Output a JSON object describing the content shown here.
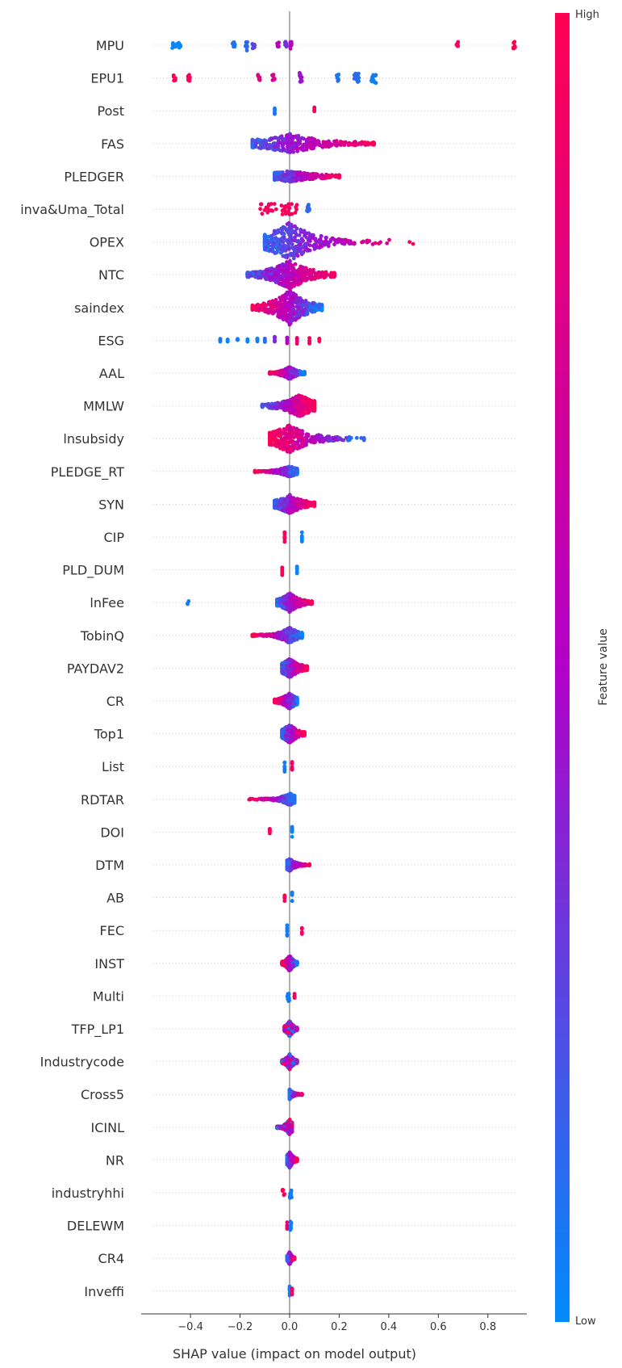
{
  "chart_data": {
    "type": "scatter",
    "subtype": "shap-beeswarm",
    "xlabel": "SHAP value (impact on model output)",
    "xlim": [
      -0.55,
      0.97
    ],
    "xticks": [
      -0.4,
      -0.2,
      0.0,
      0.2,
      0.4,
      0.6,
      0.8
    ],
    "xtick_labels": [
      "−0.4",
      "−0.2",
      "0.0",
      "0.2",
      "0.4",
      "0.6",
      "0.8"
    ],
    "colorbar": {
      "label": "Feature value",
      "high_label": "High",
      "low_label": "Low",
      "high_color": "#ff0052",
      "mid_color": "#b300c8",
      "low_color": "#008bfb"
    },
    "grid": "dotted horizontal per feature",
    "features": [
      {
        "name": "MPU",
        "clusters": [
          [
            -0.48,
            -0.44,
            0.0,
            2
          ],
          [
            -0.23,
            -0.22,
            0.1,
            2
          ],
          [
            -0.18,
            -0.17,
            0.12,
            3
          ],
          [
            -0.15,
            -0.14,
            0.25,
            2
          ],
          [
            -0.05,
            -0.04,
            0.55,
            2
          ],
          [
            -0.02,
            -0.01,
            0.3,
            2
          ],
          [
            0.0,
            0.01,
            0.55,
            2
          ],
          [
            0.67,
            0.68,
            0.95,
            2
          ],
          [
            0.9,
            0.91,
            1.0,
            2
          ]
        ]
      },
      {
        "name": "EPU1",
        "clusters": [
          [
            -0.47,
            -0.46,
            1.0,
            2
          ],
          [
            -0.41,
            -0.4,
            0.95,
            2
          ],
          [
            -0.13,
            -0.12,
            0.8,
            2
          ],
          [
            -0.07,
            -0.06,
            0.7,
            2
          ],
          [
            0.04,
            0.05,
            0.45,
            3
          ],
          [
            0.19,
            0.2,
            0.1,
            2
          ],
          [
            0.26,
            0.28,
            0.1,
            3
          ],
          [
            0.33,
            0.35,
            0.05,
            3
          ]
        ]
      },
      {
        "name": "Post",
        "clusters": [
          [
            -0.06,
            -0.06,
            0.1,
            2
          ],
          [
            0.1,
            0.1,
            0.95,
            2
          ]
        ]
      },
      {
        "name": "FAS",
        "mode": "spread",
        "min": -0.15,
        "max": 0.34,
        "peak": 0.0,
        "tail_decay": 0.18,
        "height": 12,
        "color_fn": "right_high"
      },
      {
        "name": "PLEDGER",
        "mode": "spread",
        "min": -0.06,
        "max": 0.2,
        "peak": 0.0,
        "tail_decay": 0.15,
        "height": 7,
        "color_fn": "right_high"
      },
      {
        "name": "inva&Uma_Total",
        "clusters": [
          [
            -0.12,
            0.03,
            0.95,
            3
          ],
          [
            0.07,
            0.08,
            0.1,
            3
          ]
        ]
      },
      {
        "name": "OPEX",
        "mode": "spread",
        "min": -0.1,
        "max": 0.51,
        "peak": 0.0,
        "tail_decay": 0.12,
        "height": 24,
        "color_fn": "right_high"
      },
      {
        "name": "NTC",
        "mode": "spread",
        "min": -0.17,
        "max": 0.18,
        "peak": 0.0,
        "tail_decay": 0.1,
        "height": 18,
        "color_fn": "right_high"
      },
      {
        "name": "saindex",
        "mode": "spread",
        "min": -0.15,
        "max": 0.13,
        "peak": 0.0,
        "tail_decay": 0.08,
        "height": 22,
        "color_fn": "left_high"
      },
      {
        "name": "ESG",
        "clusters": [
          [
            -0.28,
            -0.28,
            0.05,
            1
          ],
          [
            -0.25,
            -0.25,
            0.05,
            1
          ],
          [
            -0.21,
            -0.21,
            0.05,
            1
          ],
          [
            -0.17,
            -0.17,
            0.05,
            1
          ],
          [
            -0.13,
            -0.13,
            0.05,
            1
          ],
          [
            -0.1,
            -0.1,
            0.1,
            1
          ],
          [
            -0.06,
            -0.06,
            0.35,
            2
          ],
          [
            -0.01,
            -0.01,
            0.5,
            2
          ],
          [
            0.03,
            0.03,
            0.9,
            2
          ],
          [
            0.08,
            0.08,
            0.95,
            2
          ],
          [
            0.12,
            0.12,
            1.0,
            1
          ]
        ]
      },
      {
        "name": "AAL",
        "mode": "spread",
        "min": -0.08,
        "max": 0.06,
        "peak": 0.0,
        "tail_decay": 0.04,
        "height": 8,
        "color_fn": "left_high"
      },
      {
        "name": "MMLW",
        "mode": "spread",
        "min": -0.11,
        "max": 0.1,
        "peak": 0.04,
        "tail_decay": 0.08,
        "height": 14,
        "color_fn": "right_high"
      },
      {
        "name": "lnsubsidy",
        "mode": "spread",
        "min": -0.08,
        "max": 0.3,
        "peak": 0.0,
        "tail_decay": 0.1,
        "height": 18,
        "color_fn": "left_high"
      },
      {
        "name": "PLEDGE_RT",
        "mode": "spread",
        "min": -0.14,
        "max": 0.03,
        "peak": 0.0,
        "tail_decay": 0.05,
        "height": 7,
        "color_fn": "left_high"
      },
      {
        "name": "SYN",
        "mode": "spread",
        "min": -0.06,
        "max": 0.1,
        "peak": 0.0,
        "tail_decay": 0.07,
        "height": 12,
        "color_fn": "right_high"
      },
      {
        "name": "CIP",
        "clusters": [
          [
            -0.02,
            -0.02,
            0.95,
            3
          ],
          [
            0.05,
            0.05,
            0.05,
            3
          ]
        ]
      },
      {
        "name": "PLD_DUM",
        "clusters": [
          [
            -0.03,
            -0.03,
            0.95,
            3
          ],
          [
            0.03,
            0.03,
            0.05,
            3
          ]
        ]
      },
      {
        "name": "lnFee",
        "mode": "spread",
        "min": -0.05,
        "max": 0.09,
        "peak": 0.0,
        "tail_decay": 0.05,
        "height": 12,
        "color_fn": "right_high",
        "outliers": [
          [
            -0.41,
            0.05
          ]
        ]
      },
      {
        "name": "TobinQ",
        "mode": "spread",
        "min": -0.15,
        "max": 0.05,
        "peak": 0.0,
        "tail_decay": 0.05,
        "height": 10,
        "color_fn": "left_high"
      },
      {
        "name": "PAYDAV2",
        "mode": "spread",
        "min": -0.03,
        "max": 0.07,
        "peak": 0.0,
        "tail_decay": 0.05,
        "height": 12,
        "color_fn": "right_high"
      },
      {
        "name": "CR",
        "mode": "spread",
        "min": -0.06,
        "max": 0.03,
        "peak": 0.0,
        "tail_decay": 0.04,
        "height": 10,
        "color_fn": "left_high"
      },
      {
        "name": "Top1",
        "mode": "spread",
        "min": -0.03,
        "max": 0.06,
        "peak": 0.0,
        "tail_decay": 0.04,
        "height": 12,
        "color_fn": "right_high"
      },
      {
        "name": "List",
        "clusters": [
          [
            -0.02,
            -0.02,
            0.05,
            3
          ],
          [
            0.01,
            0.01,
            0.95,
            3
          ]
        ]
      },
      {
        "name": "RDTAR",
        "mode": "spread",
        "min": -0.17,
        "max": 0.02,
        "peak": 0.0,
        "tail_decay": 0.04,
        "height": 8,
        "color_fn": "left_high"
      },
      {
        "name": "DOI",
        "clusters": [
          [
            -0.08,
            -0.08,
            0.95,
            2
          ],
          [
            0.01,
            0.01,
            0.05,
            3
          ]
        ]
      },
      {
        "name": "DTM",
        "mode": "spread",
        "min": -0.01,
        "max": 0.08,
        "peak": 0.0,
        "tail_decay": 0.03,
        "height": 8,
        "color_fn": "right_high"
      },
      {
        "name": "AB",
        "clusters": [
          [
            -0.02,
            -0.02,
            0.95,
            2
          ],
          [
            0.01,
            0.01,
            0.05,
            3
          ]
        ]
      },
      {
        "name": "FEC",
        "clusters": [
          [
            -0.01,
            -0.01,
            0.05,
            3
          ],
          [
            0.05,
            0.05,
            0.95,
            2
          ]
        ]
      },
      {
        "name": "INST",
        "mode": "spread",
        "min": -0.03,
        "max": 0.03,
        "peak": 0.0,
        "tail_decay": 0.02,
        "height": 10,
        "color_fn": "left_high"
      },
      {
        "name": "Multi",
        "clusters": [
          [
            -0.01,
            0.0,
            0.05,
            3
          ],
          [
            0.02,
            0.02,
            0.95,
            2
          ]
        ]
      },
      {
        "name": "TFP_LP1",
        "mode": "spread",
        "min": -0.02,
        "max": 0.03,
        "peak": 0.0,
        "tail_decay": 0.02,
        "height": 10,
        "color_fn": "mixed"
      },
      {
        "name": "Industrycode",
        "mode": "spread",
        "min": -0.03,
        "max": 0.03,
        "peak": 0.0,
        "tail_decay": 0.02,
        "height": 10,
        "color_fn": "mixed"
      },
      {
        "name": "Cross5",
        "mode": "spread",
        "min": 0.0,
        "max": 0.05,
        "peak": 0.0,
        "tail_decay": 0.02,
        "height": 6,
        "color_fn": "right_high"
      },
      {
        "name": "ICINL",
        "mode": "spread",
        "min": -0.05,
        "max": 0.01,
        "peak": 0.0,
        "tail_decay": 0.02,
        "height": 10,
        "color_fn": "mixed"
      },
      {
        "name": "NR",
        "mode": "spread",
        "min": -0.01,
        "max": 0.03,
        "peak": 0.0,
        "tail_decay": 0.02,
        "height": 10,
        "color_fn": "right_high"
      },
      {
        "name": "industryhhi",
        "clusters": [
          [
            -0.03,
            -0.02,
            0.95,
            2
          ],
          [
            0.0,
            0.01,
            0.05,
            3
          ]
        ]
      },
      {
        "name": "DELEWM",
        "clusters": [
          [
            -0.01,
            -0.01,
            0.9,
            2
          ],
          [
            0.0,
            0.01,
            0.05,
            3
          ]
        ]
      },
      {
        "name": "CR4",
        "mode": "spread",
        "min": -0.01,
        "max": 0.02,
        "peak": 0.0,
        "tail_decay": 0.01,
        "height": 8,
        "color_fn": "right_high"
      },
      {
        "name": "Inveffi",
        "clusters": [
          [
            0.0,
            0.0,
            0.05,
            3
          ],
          [
            0.01,
            0.01,
            0.95,
            2
          ]
        ]
      }
    ]
  }
}
